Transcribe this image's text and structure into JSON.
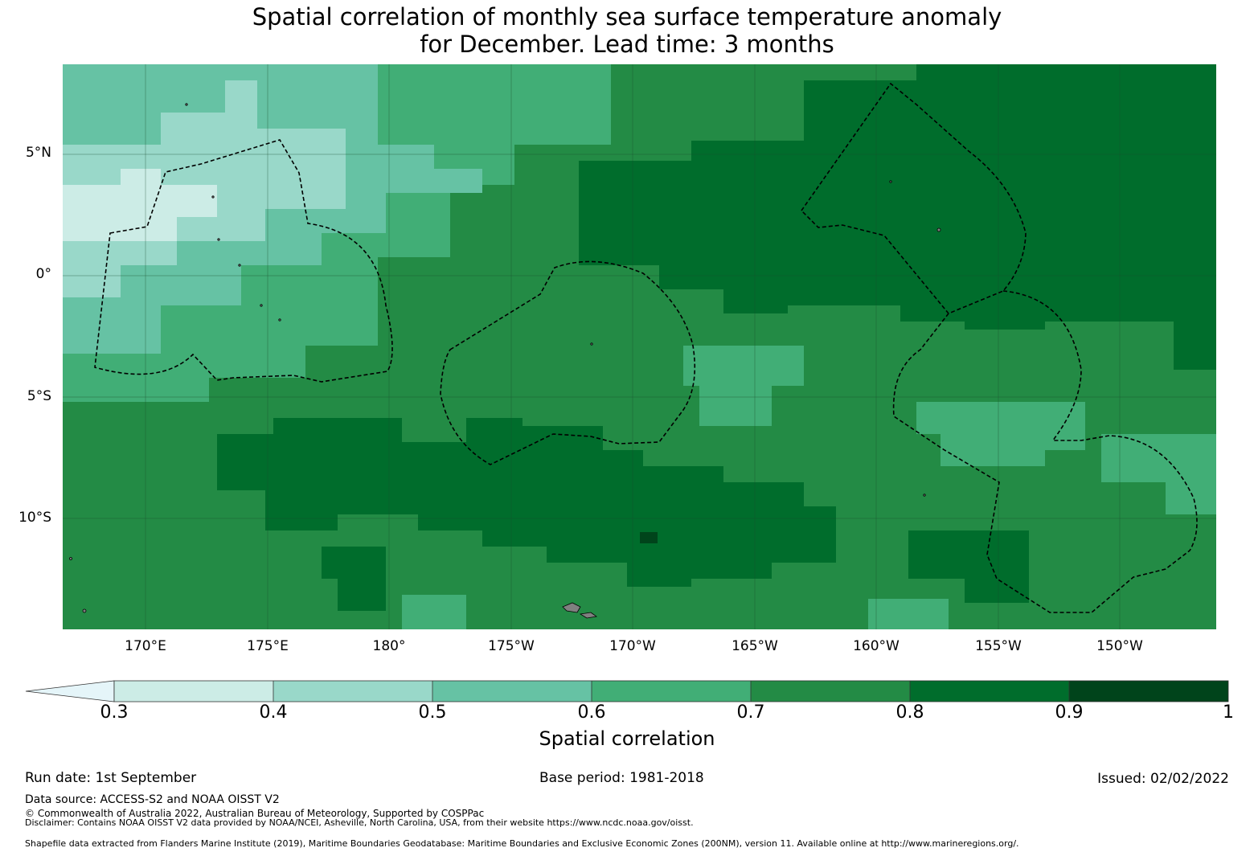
{
  "title": {
    "line1": "Spatial correlation of monthly sea surface temperature anomaly",
    "line2": "for December. Lead time: 3 months"
  },
  "map": {
    "latitude_labels": [
      "5°N",
      "0°",
      "5°S",
      "10°S"
    ],
    "longitude_labels": [
      "170°E",
      "175°E",
      "180°",
      "175°W",
      "170°W",
      "165°W",
      "160°W",
      "155°W",
      "150°W"
    ],
    "eez_boundary_style": "dashed",
    "land_color": "#808080",
    "colors": [
      "#e5f5f9",
      "#ccece6",
      "#99d8c9",
      "#66c2a4",
      "#41ae76",
      "#238b45",
      "#006d2c",
      "#00441b"
    ]
  },
  "colorbar": {
    "ticks": [
      "0.3",
      "0.4",
      "0.5",
      "0.6",
      "0.7",
      "0.8",
      "0.9",
      "1"
    ],
    "label": "Spatial correlation",
    "extend": "min"
  },
  "footer": {
    "run_date": "Run date: 1st September",
    "base_period": "Base period: 1981-2018",
    "issued": "Issued: 02/02/2022",
    "data_source": "Data source: ACCESS-S2 and NOAA OISST V2",
    "copyright": "© Commonwealth of Australia 2022, Australian Bureau of Meteorology, Supported by COSPPac",
    "disclaimer": "Disclaimer: Contains NOAA OISST V2 data provided by NOAA/NCEI, Asheville, North Carolina, USA, from their website https://www.ncdc.noaa.gov/oisst.",
    "shapefile": "Shapefile data extracted from Flanders Marine Institute (2019), Maritime Boundaries Geodatabase: Maritime Boundaries and Exclusive Economic Zones (200NM), version 11. Available online at http://www.marineregions.org/."
  }
}
